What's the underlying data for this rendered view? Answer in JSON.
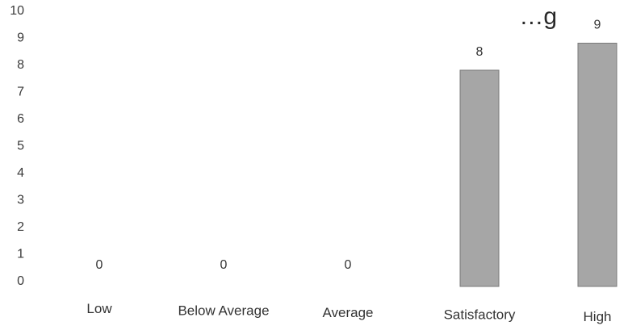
{
  "chart_data": {
    "type": "bar",
    "title": "…g",
    "categories": [
      "Low",
      "Below Average",
      "Average",
      "Satisfactory",
      "High"
    ],
    "values": [
      0,
      0,
      0,
      8,
      9
    ],
    "data_labels": [
      "0",
      "0",
      "0",
      "8",
      "9"
    ],
    "xlabel": "",
    "ylabel": "",
    "ylim": [
      0,
      10
    ],
    "yticks": [
      0,
      1,
      2,
      3,
      4,
      5,
      6,
      7,
      8,
      9,
      10
    ],
    "grid": false,
    "legend": "none",
    "bar_color": "#a6a6a6"
  }
}
